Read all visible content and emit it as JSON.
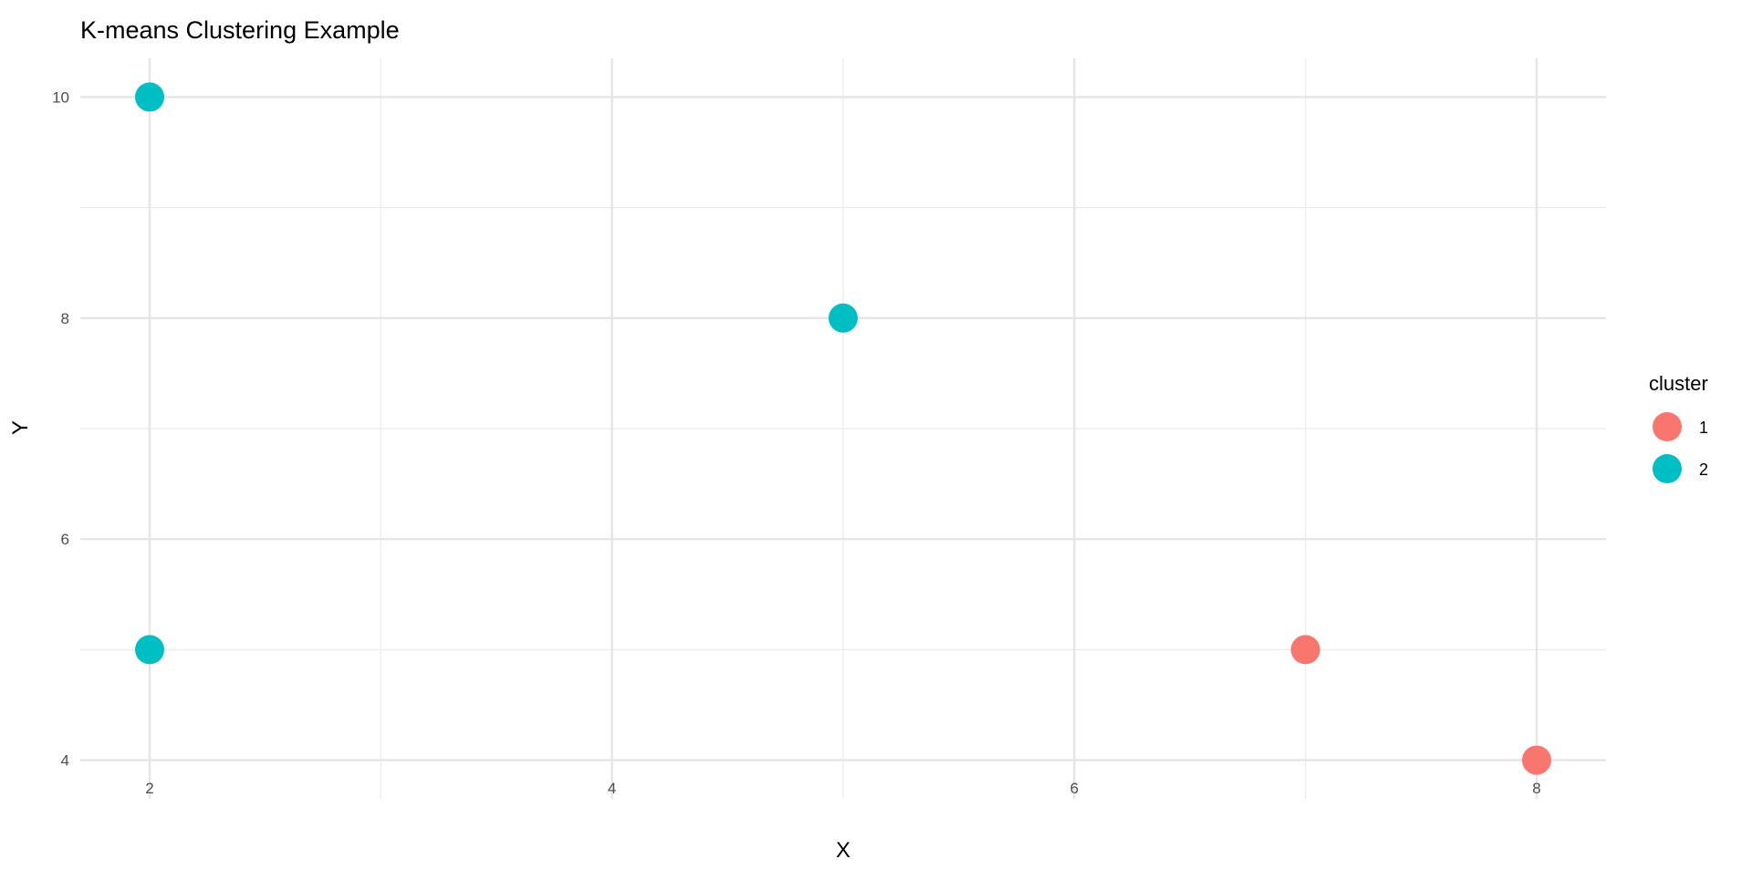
{
  "chart_data": {
    "type": "scatter",
    "title": "K-means Clustering Example",
    "xlabel": "X",
    "ylabel": "Y",
    "xlim": [
      1.7,
      8.3
    ],
    "ylim": [
      3.65,
      10.35
    ],
    "x_ticks": [
      2,
      4,
      6,
      8
    ],
    "y_ticks": [
      4,
      6,
      8,
      10
    ],
    "x_tick_labels": [
      "2",
      "4",
      "6",
      "8"
    ],
    "y_tick_labels": [
      "4",
      "6",
      "8",
      "10"
    ],
    "grid": true,
    "legend": {
      "title": "cluster",
      "position": "right",
      "entries": [
        {
          "label": "1",
          "color": "#F8766D"
        },
        {
          "label": "2",
          "color": "#00BFC4"
        }
      ]
    },
    "series": [
      {
        "name": "1",
        "color": "#F8766D",
        "points": [
          {
            "x": 7,
            "y": 5
          },
          {
            "x": 8,
            "y": 4
          }
        ]
      },
      {
        "name": "2",
        "color": "#00BFC4",
        "points": [
          {
            "x": 2,
            "y": 10
          },
          {
            "x": 5,
            "y": 8
          },
          {
            "x": 2,
            "y": 5
          }
        ]
      }
    ]
  }
}
